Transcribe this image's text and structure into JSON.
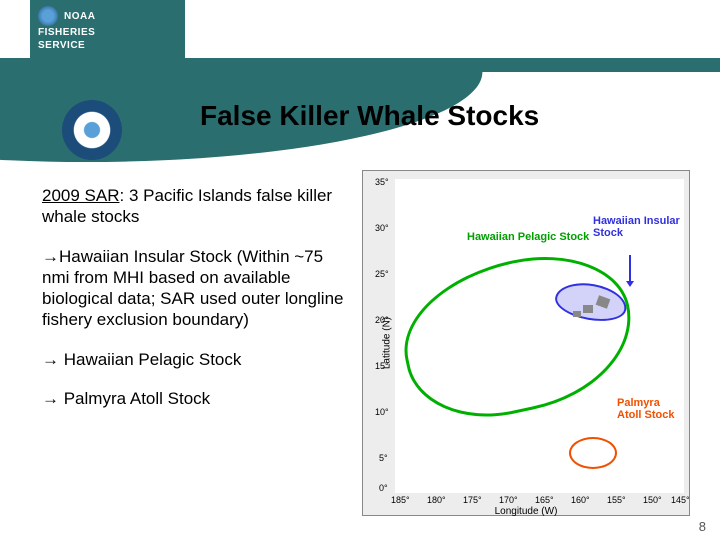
{
  "header": {
    "org": "NOAA",
    "line2": "FISHERIES",
    "line3": "SERVICE"
  },
  "title": "False Killer Whale Stocks",
  "body": {
    "sar_label": "2009 SAR",
    "sar_rest": ": 3 Pacific Islands false killer whale stocks",
    "bullet1": "Hawaiian Insular Stock (Within ~75 nmi from MHI based on available biological data; SAR used outer longline fishery exclusion boundary)",
    "bullet2": " Hawaiian Pelagic Stock",
    "bullet3": " Palmyra Atoll Stock",
    "arrow": "→"
  },
  "map": {
    "ylabel": "Latitude (N)",
    "xlabel": "Longitude (W)",
    "yticks": [
      "35°",
      "30°",
      "25°",
      "20°",
      "15°",
      "10°",
      "5°",
      "0°"
    ],
    "xticks": [
      "185°",
      "180°",
      "175°",
      "170°",
      "165°",
      "160°",
      "155°",
      "150°",
      "145°"
    ],
    "labels": {
      "pelagic": "Hawaiian Pelagic Stock",
      "insular": "Hawaiian Insular Stock",
      "palmyra": "Palmyra Atoll Stock"
    },
    "colors": {
      "pelagic": "#00b000",
      "insular": "#3030e0",
      "palmyra": "#f05000",
      "teal": "#2a6e6f",
      "map_bg": "#ededed"
    }
  },
  "slide_number": "8"
}
